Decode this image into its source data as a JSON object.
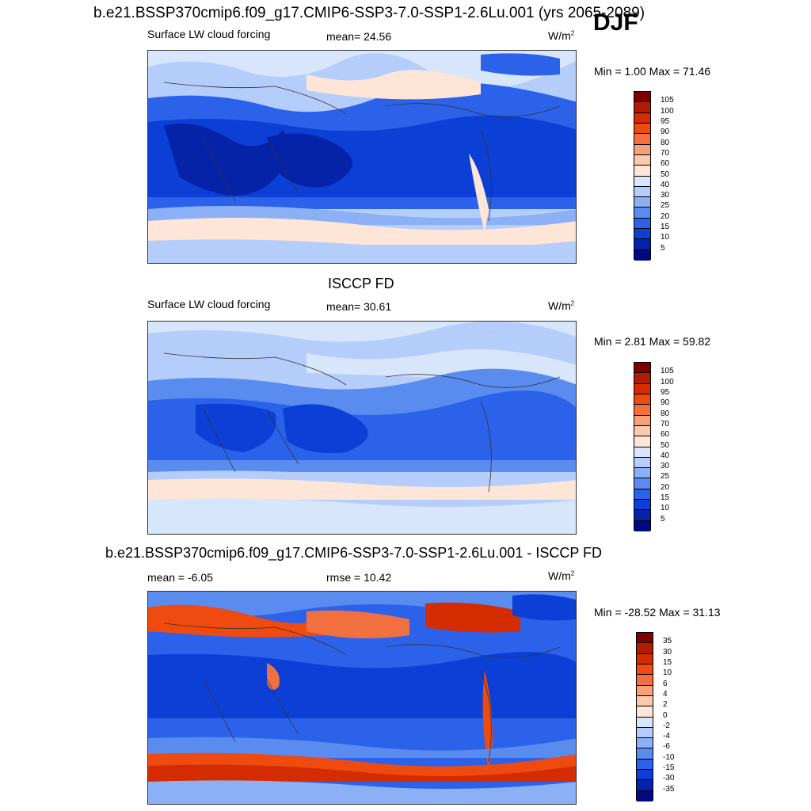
{
  "season": "DJF",
  "panel1": {
    "title": "b.e21.BSSP370cmip6.f09_g17.CMIP6-SSP3-7.0-SSP1-2.6Lu.001 (yrs 2065-2089)",
    "variable": "Surface LW cloud forcing",
    "mean_text": "mean=  24.56",
    "units": "W/m",
    "units_exp": "2",
    "minmax": "Min =   1.00 Max =  71.46"
  },
  "panel2": {
    "title": "ISCCP FD",
    "variable": "Surface LW cloud forcing",
    "mean_text": "mean=  30.61",
    "units": "W/m",
    "units_exp": "2",
    "minmax": "Min =   2.81 Max =  59.82"
  },
  "panel3": {
    "title": "b.e21.BSSP370cmip6.f09_g17.CMIP6-SSP3-7.0-SSP1-2.6Lu.001 - ISCCP FD",
    "mean_text": "mean =  -6.05",
    "rmse_text": "rmse =  10.42",
    "units": "W/m",
    "units_exp": "2",
    "minmax": "Min = -28.52 Max =  31.13"
  },
  "colorbar_abs": {
    "labels": [
      "105",
      "100",
      "95",
      "90",
      "80",
      "70",
      "60",
      "50",
      "40",
      "30",
      "25",
      "20",
      "15",
      "10",
      "5"
    ],
    "colors": [
      "#7f0000",
      "#b01c00",
      "#d42b00",
      "#ef4a0f",
      "#f27040",
      "#f7a07a",
      "#fbc9ac",
      "#fde6d8",
      "#d8e6fb",
      "#b5cdfa",
      "#8cb0f5",
      "#5a8cf0",
      "#2c62ea",
      "#0b3fd6",
      "#0523a8",
      "#000a80"
    ]
  },
  "colorbar_diff": {
    "labels": [
      "35",
      "30",
      "15",
      "10",
      "6",
      "4",
      "2",
      "0",
      "-2",
      "-4",
      "-6",
      "-10",
      "-15",
      "-30",
      "-35"
    ],
    "colors": [
      "#7f0000",
      "#b01c00",
      "#d42b00",
      "#ef4a0f",
      "#f27040",
      "#f7a07a",
      "#fbc9ac",
      "#fde6d8",
      "#d8e6fb",
      "#b5cdfa",
      "#8cb0f5",
      "#5a8cf0",
      "#2c62ea",
      "#0b3fd6",
      "#0523a8",
      "#000a80"
    ]
  }
}
